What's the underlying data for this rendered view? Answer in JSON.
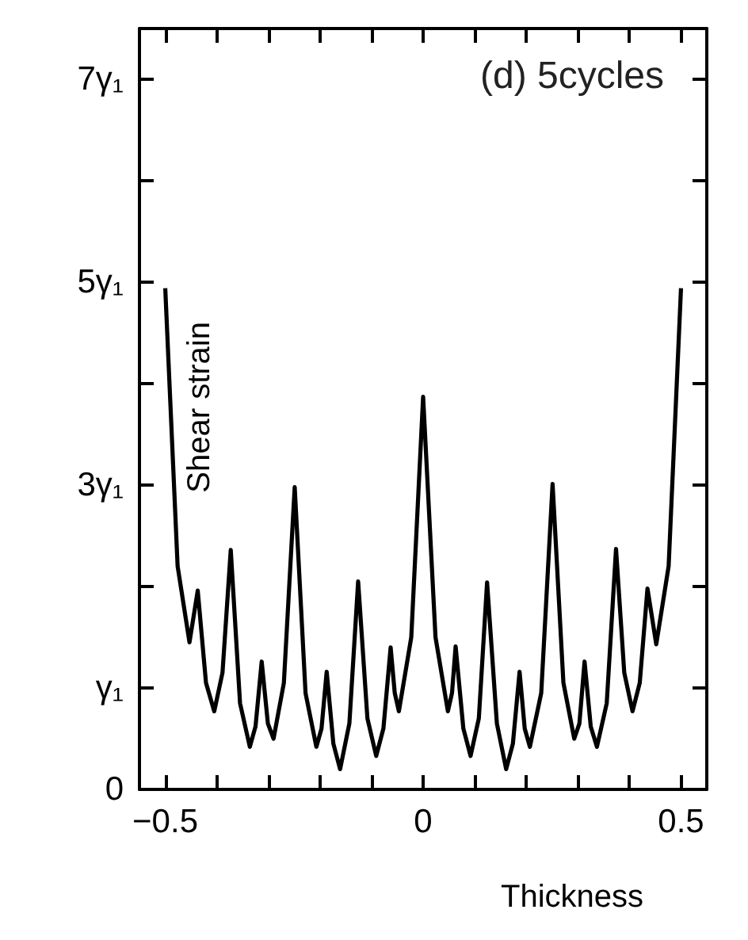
{
  "chart_data": {
    "type": "line",
    "xlabel": "Thickness",
    "ylabel": "Shear strain",
    "annotations": [
      "(d) 5cycles"
    ],
    "x": [
      -0.5,
      -0.476,
      -0.453,
      -0.437,
      -0.421,
      -0.405,
      -0.389,
      -0.373,
      -0.355,
      -0.336,
      -0.325,
      -0.313,
      -0.301,
      -0.29,
      -0.27,
      -0.249,
      -0.228,
      -0.207,
      -0.197,
      -0.187,
      -0.174,
      -0.161,
      -0.143,
      -0.126,
      -0.108,
      -0.091,
      -0.077,
      -0.063,
      -0.055,
      -0.047,
      -0.023,
      0,
      0.024,
      0.048,
      0.056,
      0.063,
      0.078,
      0.092,
      0.108,
      0.124,
      0.143,
      0.161,
      0.174,
      0.187,
      0.197,
      0.207,
      0.229,
      0.251,
      0.272,
      0.293,
      0.303,
      0.313,
      0.325,
      0.337,
      0.356,
      0.374,
      0.39,
      0.406,
      0.42,
      0.435,
      0.452,
      0.476,
      0.5
    ],
    "series": [
      {
        "color": "#000000",
        "values": [
          4.94,
          2.2,
          1.45,
          1.96,
          1.05,
          0.77,
          1.15,
          2.36,
          0.85,
          0.42,
          0.62,
          1.26,
          0.65,
          0.5,
          1.05,
          2.98,
          0.95,
          0.42,
          0.6,
          1.16,
          0.45,
          0.2,
          0.65,
          2.05,
          0.7,
          0.33,
          0.6,
          1.4,
          0.95,
          0.77,
          1.5,
          3.87,
          1.5,
          0.77,
          0.95,
          1.41,
          0.6,
          0.33,
          0.7,
          2.04,
          0.65,
          0.2,
          0.45,
          1.16,
          0.6,
          0.42,
          0.95,
          3.01,
          1.05,
          0.5,
          0.65,
          1.26,
          0.62,
          0.42,
          0.85,
          2.37,
          1.15,
          0.77,
          1.05,
          1.98,
          1.43,
          2.2,
          4.94
        ]
      }
    ],
    "xlim": [
      -0.55,
      0.55
    ],
    "xticks": [
      {
        "value": -0.5,
        "label": "−0.5"
      },
      {
        "value": -0.4,
        "label": null
      },
      {
        "value": -0.3,
        "label": null
      },
      {
        "value": -0.2,
        "label": null
      },
      {
        "value": -0.1,
        "label": null
      },
      0,
      {
        "value": 0.1,
        "label": null
      },
      {
        "value": 0.2,
        "label": null
      },
      {
        "value": 0.3,
        "label": null
      },
      {
        "value": 0.4,
        "label": null
      },
      0.5
    ],
    "ylim": [
      0,
      7.5
    ],
    "yticks": [
      0,
      {
        "value": 1,
        "label": "γ₁"
      },
      {
        "value": 2,
        "label": null
      },
      {
        "value": 3,
        "label": "3γ₁"
      },
      {
        "value": 4,
        "label": null
      },
      {
        "value": 5,
        "label": "5γ₁"
      },
      {
        "value": 6,
        "label": null
      },
      {
        "value": 7,
        "label": "7γ₁"
      }
    ],
    "grid": false,
    "marker": "none",
    "line_style": "solid"
  }
}
